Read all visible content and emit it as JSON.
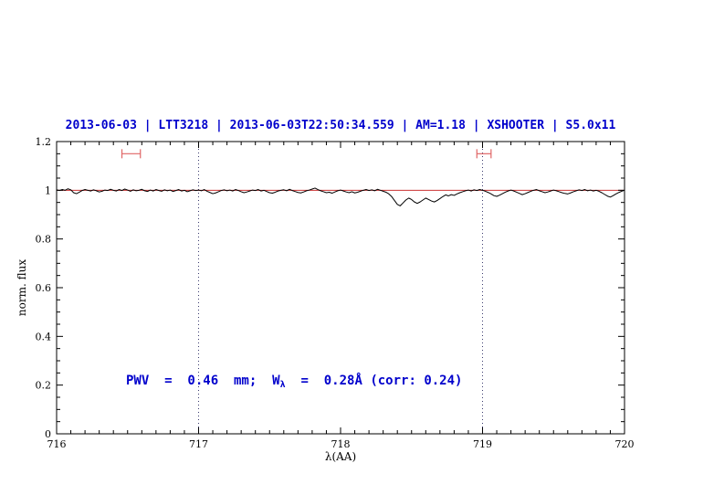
{
  "figure": {
    "title": "2013-06-03 | LTT3218 | 2013-06-03T22:50:34.559 | AM=1.18 | XSHOOTER | S5.0x11",
    "title_color": "#0000cc",
    "xlabel": "λ(AA)",
    "ylabel": "norm. flux",
    "annotation": {
      "prefix": "PWV  =  0.46  mm;  W",
      "sub": "λ",
      "suffix": "  =  0.28Å (corr: 0.24)",
      "color": "#0000cc"
    }
  },
  "chart_data": {
    "type": "line",
    "title": "2013-06-03 | LTT3218 | 2013-06-03T22:50:34.559 | AM=1.18 | XSHOOTER | S5.0x11",
    "xlabel": "λ(AA)",
    "ylabel": "norm. flux",
    "xlim": [
      716,
      720
    ],
    "ylim": [
      0,
      1.2
    ],
    "grid": false,
    "legend": "none",
    "x_ticks": [
      {
        "v": 716,
        "label": "716"
      },
      {
        "v": 717,
        "label": "717"
      },
      {
        "v": 718,
        "label": "718"
      },
      {
        "v": 719,
        "label": "719"
      },
      {
        "v": 720,
        "label": "720"
      }
    ],
    "y_ticks": [
      {
        "v": 0,
        "label": "0"
      },
      {
        "v": 0.2,
        "label": "0.2"
      },
      {
        "v": 0.4,
        "label": "0.4"
      },
      {
        "v": 0.6,
        "label": "0.6"
      },
      {
        "v": 0.8,
        "label": "0.8"
      },
      {
        "v": 1,
        "label": "1"
      },
      {
        "v": 1.2,
        "label": "1.2"
      }
    ],
    "x_minor_step": 0.1,
    "y_minor_step": 0.05,
    "vlines": [
      {
        "x": 717
      },
      {
        "x": 719
      }
    ],
    "vline_color": "#3a3a6e",
    "range_markers": [
      {
        "x_from": 716.46,
        "x_to": 716.59,
        "y": 1.15,
        "color": "#e06666"
      },
      {
        "x_from": 718.96,
        "x_to": 719.06,
        "y": 1.15,
        "color": "#e06666"
      }
    ],
    "annotation": {
      "text": "PWV = 0.46 mm; Wλ = 0.28Å (corr: 0.24)",
      "x": 716.5,
      "y": 0.21,
      "color": "#0000cc"
    },
    "series": [
      {
        "name": "observed normalized spectrum",
        "color": "#000000",
        "x_start": 716.0,
        "x_step": 0.02,
        "y": [
          1.002,
          0.999,
          1.003,
          1.0,
          1.006,
          1.002,
          0.99,
          0.986,
          0.992,
          0.999,
          1.003,
          1.0,
          0.997,
          1.002,
          0.998,
          0.993,
          0.996,
          1.001,
          0.999,
          1.004,
          1.0,
          0.997,
          1.003,
          0.999,
          1.005,
          1.001,
          0.996,
          1.002,
          0.998,
          1.0,
          1.004,
          0.998,
          0.995,
          1.001,
          0.997,
          1.003,
          0.999,
          0.996,
          1.002,
          0.998,
          1.001,
          0.995,
          0.999,
          1.003,
          0.997,
          1.0,
          0.994,
          0.998,
          1.002,
          0.999,
          1.001,
          0.998,
          1.003,
          0.996,
          0.991,
          0.986,
          0.989,
          0.994,
          0.999,
          1.002,
          0.998,
          1.001,
          0.997,
          1.003,
          0.999,
          0.994,
          0.99,
          0.993,
          0.997,
          1.001,
          0.999,
          1.003,
          0.997,
          1.0,
          0.995,
          0.99,
          0.988,
          0.992,
          0.997,
          1.0,
          1.002,
          0.998,
          1.004,
          0.999,
          0.995,
          0.991,
          0.989,
          0.993,
          0.998,
          1.001,
          1.005,
          1.009,
          1.003,
          0.998,
          0.994,
          0.99,
          0.992,
          0.988,
          0.993,
          0.998,
          1.001,
          0.997,
          0.993,
          0.99,
          0.994,
          0.989,
          0.992,
          0.996,
          1.0,
          1.003,
          0.999,
          1.002,
          0.998,
          1.004,
          1.0,
          0.996,
          0.992,
          0.985,
          0.974,
          0.958,
          0.942,
          0.936,
          0.948,
          0.96,
          0.968,
          0.962,
          0.952,
          0.946,
          0.952,
          0.96,
          0.968,
          0.962,
          0.956,
          0.952,
          0.958,
          0.966,
          0.974,
          0.981,
          0.977,
          0.982,
          0.979,
          0.985,
          0.99,
          0.994,
          0.998,
          1.001,
          0.997,
          1.002,
          0.999,
          1.003,
          1.0,
          0.996,
          0.991,
          0.985,
          0.978,
          0.975,
          0.98,
          0.986,
          0.992,
          0.997,
          1.001,
          0.997,
          0.992,
          0.987,
          0.982,
          0.986,
          0.991,
          0.996,
          1.0,
          1.003,
          0.998,
          0.994,
          0.99,
          0.993,
          0.997,
          1.001,
          0.998,
          0.994,
          0.99,
          0.987,
          0.985,
          0.989,
          0.994,
          0.998,
          1.002,
          0.999,
          1.003,
          0.998,
          1.001,
          0.997,
          1.0,
          0.996,
          0.99,
          0.983,
          0.976,
          0.972,
          0.978,
          0.985,
          0.991,
          0.996,
          1.0
        ]
      },
      {
        "name": "continuum fit",
        "color": "#cc3333",
        "x": [
          716,
          720
        ],
        "y2": [
          1.0,
          1.0
        ]
      }
    ]
  }
}
